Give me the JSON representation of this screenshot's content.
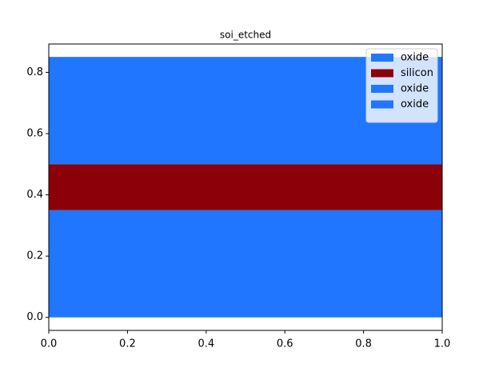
{
  "chart_data": {
    "type": "layers",
    "title": "soi_etched",
    "layers": [
      {
        "name": "oxide",
        "color": "#2176ff",
        "bottom": 0,
        "top": 0.35
      },
      {
        "name": "silicon",
        "color": "#8b0009",
        "bottom": 0.35,
        "top": 0.5
      },
      {
        "name": "oxide",
        "color": "#2176ff",
        "bottom": 0.5,
        "top": 0.85
      },
      {
        "name": "oxide",
        "color": "#2176ff",
        "bottom": 0.5,
        "top": 0.85
      }
    ],
    "xlim": [
      0,
      1
    ],
    "ylim": [
      -0.0425,
      0.8925
    ],
    "xticks": [
      {
        "value": 0,
        "label": "0.0"
      },
      0.2,
      0.4,
      0.6,
      0.8,
      {
        "value": 1,
        "label": "1.0"
      }
    ],
    "yticks": [
      {
        "value": 0,
        "label": "0.0"
      },
      0.2,
      0.4,
      0.6,
      0.8
    ],
    "legend": "upper right",
    "grid": false
  }
}
